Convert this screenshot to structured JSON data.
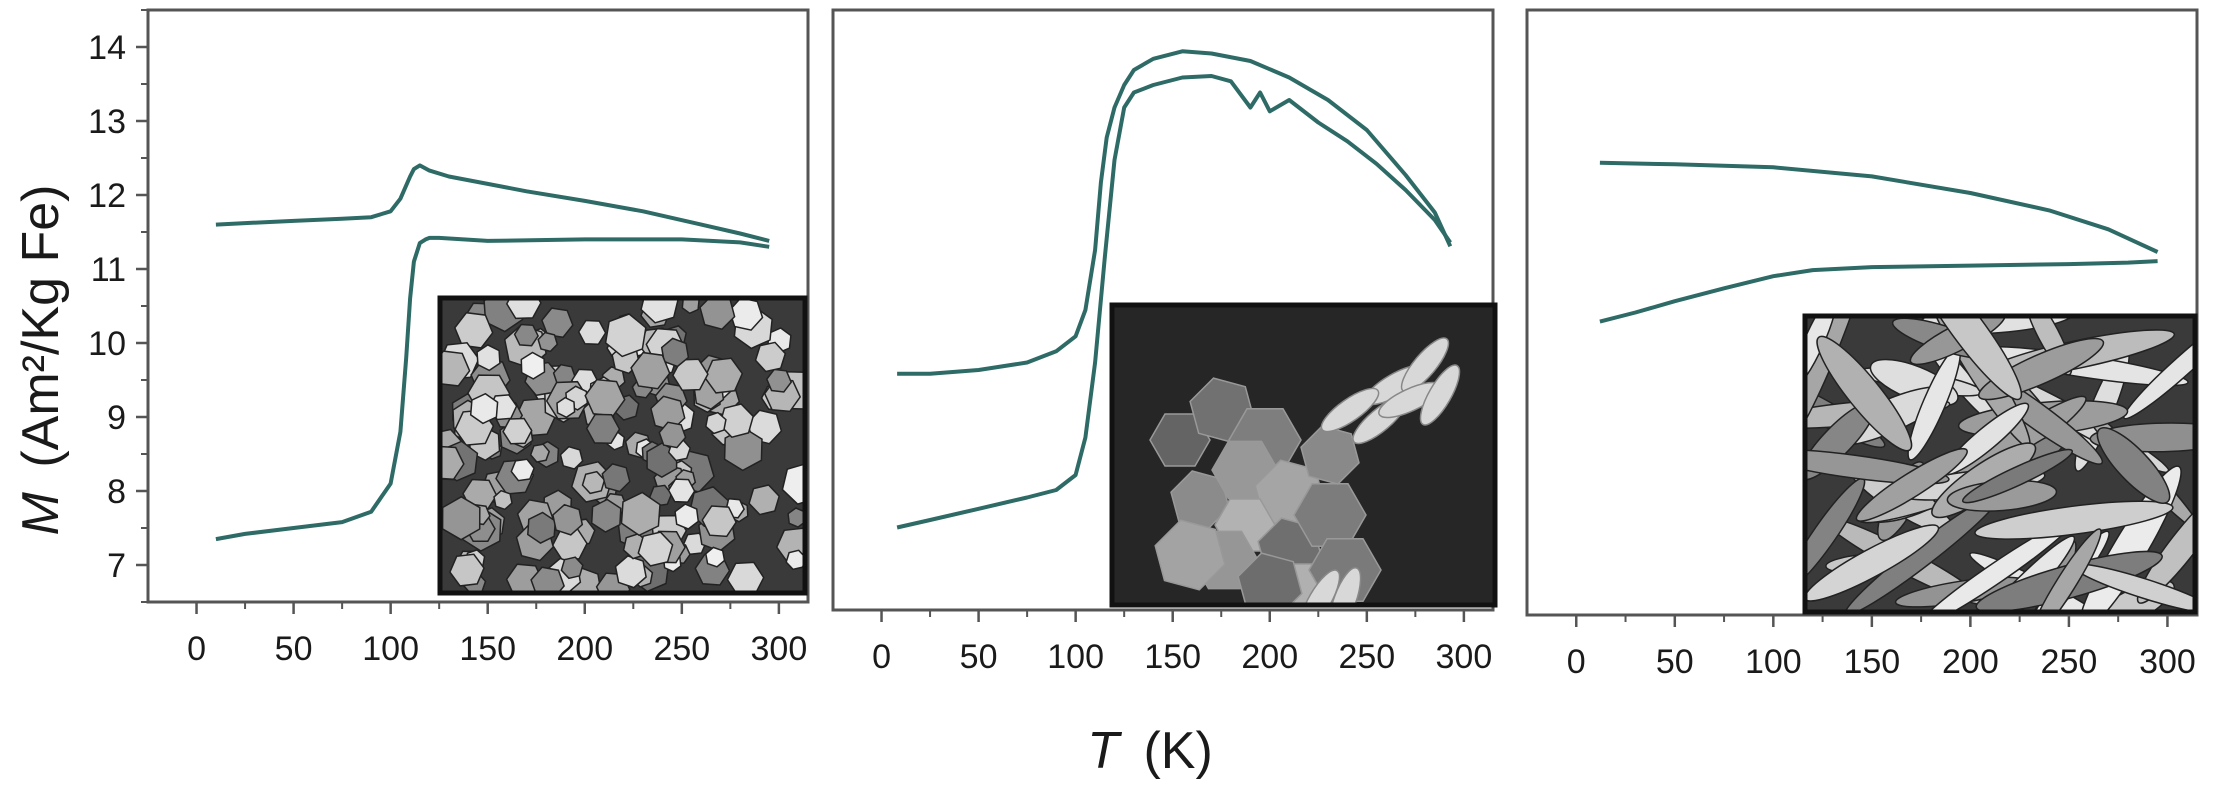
{
  "figure": {
    "ylabel_symbol": "M",
    "ylabel_unit": "(Am²/Kg Fe)",
    "xlabel_symbol": "T",
    "xlabel_unit": "(K)",
    "curve_color": "#2e6b66"
  },
  "chart_data": [
    {
      "type": "line",
      "xlim": [
        -25,
        315
      ],
      "ylim": [
        6.5,
        14.5
      ],
      "x_ticks": [
        "0",
        "50",
        "100",
        "150",
        "200",
        "250",
        "300"
      ],
      "x_tick_values": [
        0,
        50,
        100,
        150,
        200,
        250,
        300
      ],
      "y_ticks": [
        "7",
        "8",
        "9",
        "10",
        "11",
        "12",
        "13",
        "14"
      ],
      "y_tick_values": [
        7,
        8,
        9,
        10,
        11,
        12,
        13,
        14
      ],
      "inset": "sem-micrograph-equant-crystals",
      "series": [
        {
          "x": [
            10,
            25,
            50,
            75,
            90,
            100,
            105,
            110,
            112,
            115,
            120,
            130,
            150,
            170,
            200,
            230,
            260,
            280,
            295
          ],
          "y": [
            11.6,
            11.62,
            11.65,
            11.68,
            11.7,
            11.78,
            11.95,
            12.25,
            12.35,
            12.4,
            12.33,
            12.25,
            12.15,
            12.05,
            11.92,
            11.78,
            11.6,
            11.48,
            11.38
          ]
        },
        {
          "x": [
            10,
            25,
            50,
            75,
            90,
            100,
            105,
            108,
            110,
            112,
            115,
            118,
            120,
            125,
            150,
            200,
            250,
            280,
            295
          ],
          "y": [
            7.35,
            7.42,
            7.5,
            7.58,
            7.72,
            8.1,
            8.8,
            9.8,
            10.6,
            11.1,
            11.35,
            11.4,
            11.42,
            11.42,
            11.38,
            11.4,
            11.4,
            11.36,
            11.3
          ]
        }
      ]
    },
    {
      "type": "line",
      "xlim": [
        -25,
        315
      ],
      "ylim": [
        6.5,
        14.5
      ],
      "x_ticks": [
        "0",
        "50",
        "100",
        "150",
        "200",
        "250",
        "300"
      ],
      "x_tick_values": [
        0,
        50,
        100,
        150,
        200,
        250,
        300
      ],
      "inset": "sem-micrograph-hexagonal-platelets",
      "series": [
        {
          "x": [
            8,
            25,
            50,
            75,
            90,
            100,
            105,
            110,
            113,
            116,
            120,
            125,
            130,
            140,
            155,
            170,
            190,
            210,
            230,
            250,
            270,
            285,
            293
          ],
          "y": [
            9.65,
            9.65,
            9.7,
            9.8,
            9.95,
            10.15,
            10.5,
            11.3,
            12.2,
            12.8,
            13.2,
            13.5,
            13.7,
            13.85,
            13.95,
            13.92,
            13.82,
            13.6,
            13.3,
            12.9,
            12.3,
            11.8,
            11.35
          ]
        },
        {
          "x": [
            8,
            25,
            50,
            75,
            90,
            100,
            105,
            110,
            115,
            120,
            125,
            130,
            140,
            155,
            170,
            180,
            190,
            195,
            200,
            210,
            225,
            240,
            255,
            270,
            285,
            293
          ],
          "y": [
            7.6,
            7.7,
            7.85,
            8.0,
            8.1,
            8.3,
            8.8,
            9.8,
            11.2,
            12.5,
            13.2,
            13.4,
            13.5,
            13.6,
            13.62,
            13.55,
            13.2,
            13.4,
            13.15,
            13.3,
            13.0,
            12.75,
            12.45,
            12.1,
            11.7,
            11.4
          ]
        }
      ]
    },
    {
      "type": "line",
      "xlim": [
        -25,
        315
      ],
      "ylim": [
        6.5,
        14.5
      ],
      "x_ticks": [
        "0",
        "50",
        "100",
        "150",
        "200",
        "250",
        "300"
      ],
      "x_tick_values": [
        0,
        50,
        100,
        150,
        200,
        250,
        300
      ],
      "inset": "sem-micrograph-elongated-rods",
      "series": [
        {
          "x": [
            12,
            50,
            100,
            150,
            200,
            240,
            270,
            285,
            295
          ],
          "y": [
            12.48,
            12.46,
            12.42,
            12.3,
            12.08,
            11.85,
            11.6,
            11.42,
            11.3
          ]
        },
        {
          "x": [
            12,
            30,
            50,
            75,
            100,
            120,
            150,
            200,
            250,
            280,
            295
          ],
          "y": [
            10.38,
            10.5,
            10.65,
            10.82,
            10.98,
            11.06,
            11.1,
            11.12,
            11.14,
            11.16,
            11.18
          ]
        }
      ]
    }
  ]
}
